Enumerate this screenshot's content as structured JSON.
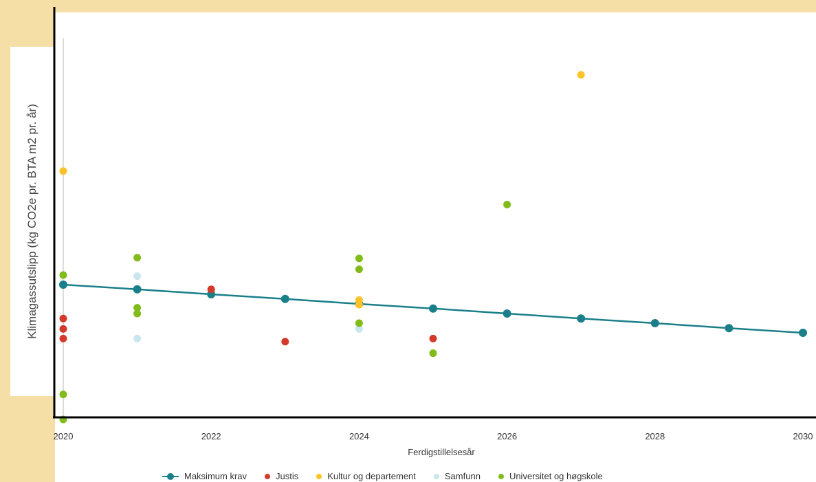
{
  "chart_data": {
    "type": "scatter",
    "title": "",
    "xlabel": "Ferdigstillelsesår",
    "ylabel": "Klimagassutslipp (kg CO2e pr. BTA m2 pr. år)",
    "xlim": [
      2020,
      2030
    ],
    "ylim": [
      0,
      10
    ],
    "x_ticks": [
      2020,
      2022,
      2024,
      2026,
      2028,
      2030
    ],
    "x_tick_labels": [
      "2020",
      "2022",
      "2024",
      "2026",
      "2028",
      "2030"
    ],
    "grid": false,
    "legend_position": "bottom",
    "series": [
      {
        "name": "Maksimum krav",
        "kind": "line",
        "color": "#1a7f89",
        "points": [
          [
            2020,
            3.5
          ],
          [
            2021,
            3.38
          ],
          [
            2022,
            3.25
          ],
          [
            2023,
            3.13
          ],
          [
            2024,
            3.0
          ],
          [
            2025,
            2.88
          ],
          [
            2026,
            2.75
          ],
          [
            2027,
            2.62
          ],
          [
            2028,
            2.5
          ],
          [
            2029,
            2.37
          ],
          [
            2030,
            2.25
          ]
        ]
      },
      {
        "name": "Justis",
        "kind": "scatter",
        "color": "#d43a2b",
        "points": [
          [
            2020,
            2.62
          ],
          [
            2020,
            2.35
          ],
          [
            2020,
            2.1
          ],
          [
            2022,
            3.38
          ],
          [
            2023,
            2.02
          ],
          [
            2025,
            2.1
          ]
        ]
      },
      {
        "name": "Kultur og departement",
        "kind": "scatter",
        "color": "#fcc22a",
        "points": [
          [
            2020,
            6.45
          ],
          [
            2024,
            3.1
          ],
          [
            2024,
            2.98
          ],
          [
            2027,
            8.95
          ]
        ]
      },
      {
        "name": "Samfunn",
        "kind": "scatter",
        "color": "#c9e6ec",
        "points": [
          [
            2021,
            3.72
          ],
          [
            2021,
            2.1
          ],
          [
            2024,
            2.35
          ]
        ]
      },
      {
        "name": "Universitet og høgskole",
        "kind": "scatter",
        "color": "#82bc1a",
        "points": [
          [
            2020,
            3.75
          ],
          [
            2020,
            0.65
          ],
          [
            2020,
            0.0
          ],
          [
            2021,
            4.2
          ],
          [
            2021,
            2.9
          ],
          [
            2021,
            2.75
          ],
          [
            2024,
            4.18
          ],
          [
            2024,
            3.9
          ],
          [
            2024,
            2.5
          ],
          [
            2025,
            1.72
          ],
          [
            2026,
            5.58
          ]
        ]
      }
    ]
  }
}
